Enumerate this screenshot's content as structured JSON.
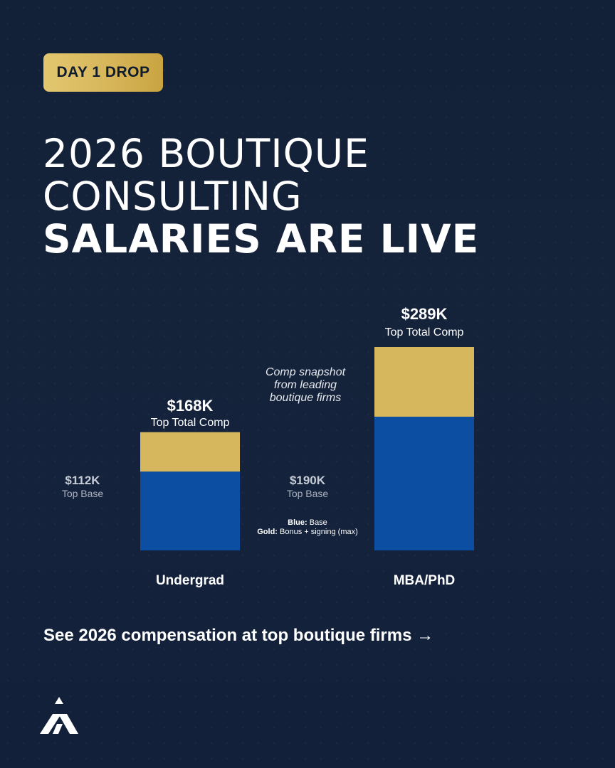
{
  "badge": {
    "label": "DAY 1 DROP"
  },
  "headline": {
    "line1": "2026 BOUTIQUE",
    "line2": "CONSULTING",
    "line3": "SALARIES ARE LIVE"
  },
  "colors": {
    "base": "#0b4ea2",
    "bonus": "#d7b75e",
    "background": "#13213a"
  },
  "chart_data": {
    "type": "bar",
    "stacked": true,
    "categories": [
      "Undergrad",
      "MBA/PhD"
    ],
    "series": [
      {
        "name": "Base",
        "values": [
          112,
          190
        ]
      },
      {
        "name": "Bonus + signing (max)",
        "values": [
          56,
          99
        ]
      }
    ],
    "units": "$K",
    "totals": [
      {
        "value": "$168K",
        "label": "Top Total Comp"
      },
      {
        "value": "$289K",
        "label": "Top Total Comp"
      }
    ],
    "base_labels": [
      {
        "value": "$112K",
        "label": "Top Base"
      },
      {
        "value": "$190K",
        "label": "Top Base"
      }
    ],
    "annotation": [
      "Comp snapshot",
      "from leading",
      "boutique firms"
    ],
    "legend": [
      {
        "key": "Blue:",
        "text": " Base"
      },
      {
        "key": "Gold:",
        "text": " Bonus + signing (max)"
      }
    ],
    "ylim": [
      0,
      289
    ]
  },
  "cta": {
    "text": "See 2026 compensation at top boutique firms →"
  },
  "logo": {
    "icon": "brand-logo-icon"
  }
}
